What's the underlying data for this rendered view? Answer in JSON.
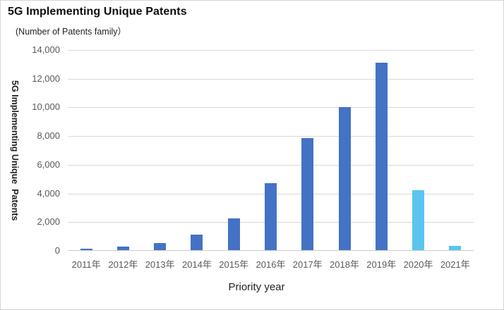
{
  "header": {
    "title": "5G Implementing Unique Patents",
    "subtitle": "(Number of Patents family）"
  },
  "chart_data": {
    "type": "bar",
    "title": "5G Implementing Unique Patents",
    "subtitle": "(Number of Patents family）",
    "xlabel": "Priority year",
    "ylabel": "5G Implementing Unique  Patents",
    "categories": [
      "2011年",
      "2012年",
      "2013年",
      "2014年",
      "2015年",
      "2016年",
      "2017年",
      "2018年",
      "2019年",
      "2020年",
      "2021年"
    ],
    "values": [
      100,
      250,
      500,
      1100,
      2200,
      4650,
      7800,
      9950,
      13050,
      4200,
      300
    ],
    "bar_colors": [
      "#4472C4",
      "#4472C4",
      "#4472C4",
      "#4472C4",
      "#4472C4",
      "#4472C4",
      "#4472C4",
      "#4472C4",
      "#4472C4",
      "#5BC5F0",
      "#5BC5F0"
    ],
    "ylim": [
      0,
      14000
    ],
    "ytick_step": 2000,
    "ytick_labels": [
      "0",
      "2,000",
      "4,000",
      "6,000",
      "8,000",
      "10,000",
      "12,000",
      "14,000"
    ],
    "grid": true,
    "legend": "none",
    "colors": {
      "primary": "#4472C4",
      "highlight": "#5BC5F0",
      "gridline": "#D9D9D9",
      "tick_text": "#595959"
    }
  }
}
